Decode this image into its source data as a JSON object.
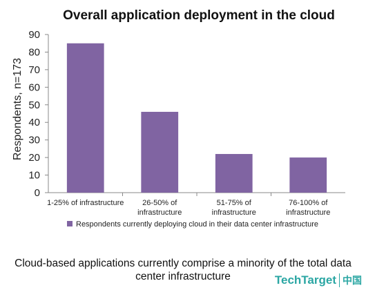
{
  "chart_data": {
    "type": "bar",
    "title": "Overall application deployment in the cloud",
    "ylabel": "Respondents, n=173",
    "xlabel": "",
    "ylim": [
      0,
      90
    ],
    "yticks": [
      0,
      10,
      20,
      30,
      40,
      50,
      60,
      70,
      80,
      90
    ],
    "categories": [
      [
        "1-25% of infrastructure"
      ],
      [
        "26-50% of",
        "infrastructure"
      ],
      [
        "51-75% of",
        "infrastructure"
      ],
      [
        "76-100% of",
        "infrastructure"
      ]
    ],
    "series": [
      {
        "name": "Respondents currently deploying cloud in their data center infrastructure",
        "values": [
          85,
          46,
          22,
          20
        ],
        "color": "#8064a2"
      }
    ],
    "grid": false,
    "legend_position": "bottom"
  },
  "caption": {
    "line1": "Cloud-based applications currently comprise a minority of the total data",
    "line2": "center infrastructure"
  },
  "watermark": {
    "brand": "TechTarget",
    "suffix": "中国"
  }
}
